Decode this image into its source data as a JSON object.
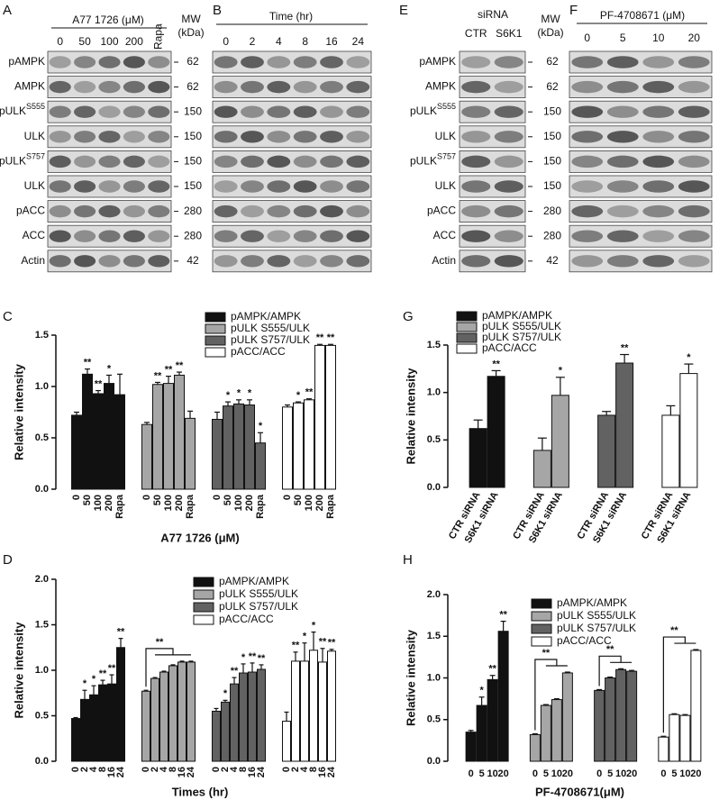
{
  "blots": [
    {
      "panel": "A",
      "header": "A77 1726 (μM)",
      "lanes": [
        "0",
        "50",
        "100",
        "200",
        "Rapa"
      ],
      "rows": [
        {
          "label": "pAMPK"
        },
        {
          "label": "AMPK"
        },
        {
          "label": "pULK",
          "sup": "S555"
        },
        {
          "label": "ULK"
        },
        {
          "label": "pULK",
          "sup": "S757"
        },
        {
          "label": "ULK"
        },
        {
          "label": "pACC"
        },
        {
          "label": "ACC"
        },
        {
          "label": "Actin"
        }
      ],
      "mw_title": [
        "MW",
        "(kDa)"
      ],
      "mw": [
        62,
        62,
        150,
        150,
        150,
        150,
        280,
        280,
        42
      ]
    },
    {
      "panel": "B",
      "header": "Time (hr)",
      "lanes": [
        "0",
        "2",
        "4",
        "8",
        "16",
        "24"
      ]
    },
    {
      "panel": "E",
      "header": "siRNA",
      "lanes": [
        "CTR",
        "S6K1"
      ],
      "rows": [
        {
          "label": "pAMPK"
        },
        {
          "label": "AMPK"
        },
        {
          "label": "pULK",
          "sup": "S555"
        },
        {
          "label": "ULK"
        },
        {
          "label": "pULK",
          "sup": "S757"
        },
        {
          "label": "ULK"
        },
        {
          "label": "pACC"
        },
        {
          "label": "ACC"
        },
        {
          "label": "Actin"
        }
      ],
      "mw_title": [
        "MW",
        "(kDa)"
      ],
      "mw": [
        62,
        62,
        150,
        150,
        150,
        150,
        280,
        280,
        42
      ]
    },
    {
      "panel": "F",
      "header": "PF-4708671 (μM)",
      "lanes": [
        "0",
        "5",
        "10",
        "20"
      ]
    }
  ],
  "chart_data": [
    {
      "type": "bar",
      "panel": "C",
      "ylabel": "Relative intensity",
      "xlabel": "A77 1726 (μM)",
      "categories": [
        "0",
        "50",
        "100",
        "200",
        "Rapa"
      ],
      "ylim": [
        0,
        1.5
      ],
      "yticks": [
        {
          "value": 0,
          "label": "0.0"
        },
        {
          "value": 0.5,
          "label": "0.5"
        },
        {
          "value": 1,
          "label": "1.0"
        },
        {
          "value": 1.5,
          "label": "1.5"
        }
      ],
      "series": [
        {
          "name": "pAMPK/AMPK",
          "color": "#111111",
          "values": [
            0.72,
            1.12,
            0.93,
            1.03,
            0.92
          ],
          "errors": [
            0.03,
            0.05,
            0.03,
            0.08,
            0.2
          ],
          "stars": [
            null,
            "**",
            "**",
            "*",
            null
          ]
        },
        {
          "name": "pULK S555/ULK",
          "color": "#a6a6a6",
          "values": [
            0.63,
            1.02,
            1.03,
            1.11,
            0.69
          ],
          "errors": [
            0.02,
            0.02,
            0.07,
            0.03,
            0.07
          ],
          "stars": [
            null,
            "**",
            "**",
            "**",
            null
          ]
        },
        {
          "name": "pULK S757/ULK",
          "color": "#626262",
          "values": [
            0.68,
            0.81,
            0.83,
            0.82,
            0.45
          ],
          "errors": [
            0.07,
            0.04,
            0.04,
            0.05,
            0.1
          ],
          "stars": [
            null,
            "*",
            "*",
            "*",
            "*"
          ]
        },
        {
          "name": "pACC/ACC",
          "color": "#ffffff",
          "values": [
            0.8,
            0.84,
            0.87,
            1.4,
            1.4
          ],
          "errors": [
            0.02,
            0.01,
            0.01,
            0.01,
            0.01
          ],
          "stars": [
            null,
            "*",
            "**",
            "**",
            "**"
          ]
        }
      ]
    },
    {
      "type": "bar",
      "panel": "D",
      "ylabel": "Relative intensity",
      "xlabel": "Times (hr)",
      "categories": [
        "0",
        "2",
        "4",
        "8",
        "16",
        "24"
      ],
      "ylim": [
        0,
        2
      ],
      "yticks": [
        {
          "value": 0,
          "label": "0.0"
        },
        {
          "value": 0.5,
          "label": "0.5"
        },
        {
          "value": 1,
          "label": "1.0"
        },
        {
          "value": 1.5,
          "label": "1.5"
        },
        {
          "value": 2,
          "label": "2.0"
        }
      ],
      "series": [
        {
          "name": "pAMPK/AMPK",
          "color": "#111111",
          "values": [
            0.47,
            0.68,
            0.73,
            0.84,
            0.85,
            1.25
          ],
          "errors": [
            0.01,
            0.1,
            0.1,
            0.05,
            0.1,
            0.1
          ],
          "stars": [
            null,
            "*",
            "*",
            "**",
            "**",
            "**"
          ]
        },
        {
          "name": "pULK S555/ULK",
          "color": "#a6a6a6",
          "values": [
            0.77,
            0.91,
            0.98,
            1.05,
            1.09,
            1.09
          ],
          "errors": [
            0.01,
            0.01,
            0.01,
            0.01,
            0.01,
            0.01
          ],
          "bracket": "**"
        },
        {
          "name": "pULK S757/ULK",
          "color": "#626262",
          "values": [
            0.55,
            0.65,
            0.85,
            0.97,
            0.98,
            1.01
          ],
          "errors": [
            0.03,
            0.02,
            0.07,
            0.1,
            0.1,
            0.05
          ],
          "stars": [
            null,
            "*",
            "**",
            "*",
            "**",
            "**"
          ]
        },
        {
          "name": "pACC/ACC",
          "color": "#ffffff",
          "values": [
            0.44,
            1.1,
            1.1,
            1.22,
            1.09,
            1.21
          ],
          "errors": [
            0.1,
            0.1,
            0.2,
            0.2,
            0.15,
            0.02
          ],
          "stars": [
            null,
            "**",
            "*",
            "*",
            "**",
            "**"
          ]
        }
      ]
    },
    {
      "type": "bar",
      "panel": "G",
      "ylabel": "Relative intensity",
      "categories": [
        "CTR siRNA",
        "S6K1 siRNA"
      ],
      "ylim": [
        0,
        1.5
      ],
      "yticks": [
        {
          "value": 0,
          "label": "0.0"
        },
        {
          "value": 0.5,
          "label": "0.5"
        },
        {
          "value": 1,
          "label": "1.0"
        },
        {
          "value": 1.5,
          "label": "1.5"
        }
      ],
      "series": [
        {
          "name": "pAMPK/AMPK",
          "color": "#111111",
          "values": [
            0.62,
            1.17
          ],
          "errors": [
            0.09,
            0.06
          ],
          "stars": [
            null,
            "**"
          ]
        },
        {
          "name": "pULK S555/ULK",
          "color": "#a6a6a6",
          "values": [
            0.39,
            0.97
          ],
          "errors": [
            0.13,
            0.19
          ],
          "stars": [
            null,
            "*"
          ]
        },
        {
          "name": "pULK S757/ULK",
          "color": "#626262",
          "values": [
            0.76,
            1.31
          ],
          "errors": [
            0.04,
            0.09
          ],
          "stars": [
            null,
            "**"
          ]
        },
        {
          "name": "pACC/ACC",
          "color": "#ffffff",
          "values": [
            0.76,
            1.2
          ],
          "errors": [
            0.1,
            0.1
          ],
          "stars": [
            null,
            "*"
          ]
        }
      ]
    },
    {
      "type": "bar",
      "panel": "H",
      "ylabel": "Relative intensity",
      "xlabel": "PF-4708671(μM)",
      "categories": [
        "0",
        "5",
        "10",
        "20"
      ],
      "ylim": [
        0,
        2
      ],
      "yticks": [
        {
          "value": 0,
          "label": "0.0"
        },
        {
          "value": 0.5,
          "label": "0.5"
        },
        {
          "value": 1,
          "label": "1.0"
        },
        {
          "value": 1.5,
          "label": "1.5"
        },
        {
          "value": 2,
          "label": "2.0"
        }
      ],
      "series": [
        {
          "name": "pAMPK/AMPK",
          "color": "#111111",
          "values": [
            0.35,
            0.67,
            0.98,
            1.56
          ],
          "errors": [
            0.02,
            0.1,
            0.05,
            0.12
          ],
          "stars": [
            null,
            "*",
            "**",
            "**"
          ]
        },
        {
          "name": "pULK S555/ULK",
          "color": "#a6a6a6",
          "values": [
            0.32,
            0.67,
            0.74,
            1.06
          ],
          "errors": [
            0.01,
            0.01,
            0.01,
            0.01
          ],
          "bracket": "**"
        },
        {
          "name": "pULK S757/ULK",
          "color": "#626262",
          "values": [
            0.85,
            1.0,
            1.1,
            1.08
          ],
          "errors": [
            0.01,
            0.01,
            0.01,
            0.01
          ],
          "bracket": "**"
        },
        {
          "name": "pACC/ACC",
          "color": "#ffffff",
          "values": [
            0.29,
            0.56,
            0.55,
            1.33
          ],
          "errors": [
            0.01,
            0.01,
            0.01,
            0.01
          ],
          "bracket": "**"
        }
      ]
    }
  ]
}
